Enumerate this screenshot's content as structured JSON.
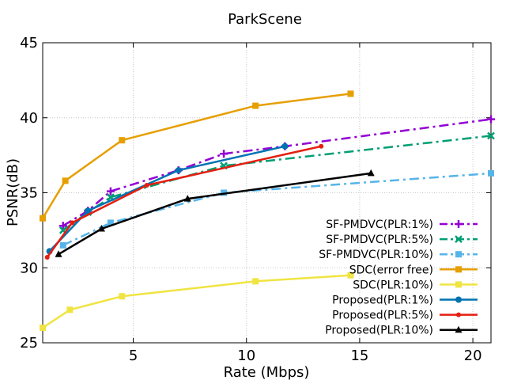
{
  "chart_data": {
    "type": "line",
    "title": "ParkScene",
    "xlabel": "Rate (Mbps)",
    "ylabel": "PSNR(dB)",
    "xlim": [
      1,
      20.8
    ],
    "ylim": [
      25,
      45
    ],
    "xticks": [
      5,
      10,
      15,
      20
    ],
    "yticks": [
      25,
      30,
      35,
      40,
      45
    ],
    "grid": true,
    "legend_position": "bottom-right",
    "series": [
      {
        "name": "SF-PMDVC(PLR:1%)",
        "color": "#9400d3",
        "dash": "dashdot",
        "marker": "plus",
        "x": [
          1.9,
          3.0,
          4.0,
          7.0,
          9.0,
          11.7,
          20.8
        ],
        "y": [
          32.8,
          33.8,
          35.1,
          36.5,
          37.6,
          38.1,
          39.9
        ]
      },
      {
        "name": "SF-PMDVC(PLR:5%)",
        "color": "#009e73",
        "dash": "dashdot",
        "marker": "x",
        "x": [
          1.9,
          3.0,
          4.0,
          9.0,
          20.8
        ],
        "y": [
          32.5,
          33.7,
          34.7,
          36.8,
          38.8
        ]
      },
      {
        "name": "SF-PMDVC(PLR:10%)",
        "color": "#56b4e9",
        "dash": "dashdot",
        "marker": "square",
        "x": [
          1.9,
          4.0,
          9.0,
          20.8
        ],
        "y": [
          31.5,
          33.0,
          35.0,
          36.3
        ]
      },
      {
        "name": "SDC(error free)",
        "color": "#e69f00",
        "dash": "solid",
        "marker": "square",
        "x": [
          1.0,
          2.0,
          4.5,
          10.4,
          14.6
        ],
        "y": [
          33.3,
          35.8,
          38.5,
          40.8,
          41.6
        ]
      },
      {
        "name": "SDC(PLR:10%)",
        "color": "#f0e442",
        "dash": "solid",
        "marker": "square",
        "x": [
          1.0,
          2.2,
          4.5,
          10.4,
          14.6
        ],
        "y": [
          26.0,
          27.2,
          28.1,
          29.1,
          29.5
        ]
      },
      {
        "name": "Proposed(PLR:1%)",
        "color": "#0072b2",
        "dash": "solid",
        "marker": "circle",
        "x": [
          1.3,
          3.0,
          7.0,
          11.7
        ],
        "y": [
          31.1,
          33.8,
          36.5,
          38.1
        ]
      },
      {
        "name": "Proposed(PLR:5%)",
        "color": "#e51e10",
        "dash": "solid",
        "marker": "dot",
        "x": [
          1.2,
          2.3,
          5.6,
          13.3
        ],
        "y": [
          30.7,
          33.0,
          35.5,
          38.1
        ]
      },
      {
        "name": "Proposed(PLR:10%)",
        "color": "#000000",
        "dash": "solid",
        "marker": "triangle",
        "x": [
          1.7,
          3.6,
          7.4,
          15.5
        ],
        "y": [
          30.9,
          32.6,
          34.6,
          36.3
        ]
      }
    ]
  }
}
